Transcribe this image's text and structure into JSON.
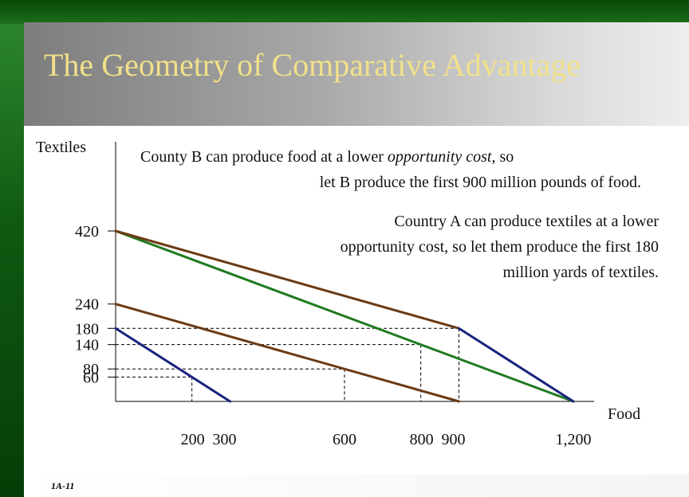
{
  "slide": {
    "title": "The Geometry of Comparative Advantage",
    "footnote": "1A-11",
    "annotation_b": {
      "line1_pre": "County B can produce food at a lower ",
      "line1_em": "opportunity cost",
      "line1_post": ", so",
      "line2": "let B produce the first  900 million pounds of food."
    },
    "annotation_a": {
      "line1": "Country A can produce textiles at a lower",
      "line2": "opportunity cost, so let them produce the first 180",
      "line3": "million yards of textiles."
    }
  },
  "colors": {
    "country_a": "#1a237e",
    "country_b": "#6b3a14",
    "combined": "#1e7a1e",
    "title": "#f1e18a"
  },
  "chart_data": {
    "type": "line",
    "ylabel": "Textiles",
    "xlabel": "Food",
    "xlim": [
      0,
      1200
    ],
    "ylim": [
      0,
      420
    ],
    "x_tick_labels": [
      {
        "x": 200,
        "label": "200"
      },
      {
        "x": 300,
        "label": "300"
      },
      {
        "x": 600,
        "label": "600"
      },
      {
        "x": 800,
        "label": "800"
      },
      {
        "x": 900,
        "label": "900"
      },
      {
        "x": 1200,
        "label": "1,200"
      }
    ],
    "y_tick_labels": [
      {
        "y": 420,
        "label": "420"
      },
      {
        "y": 240,
        "label": "240"
      },
      {
        "y": 180,
        "label": "180"
      },
      {
        "y": 140,
        "label": "140"
      },
      {
        "y": 80,
        "label": "80"
      },
      {
        "y": 60,
        "label": "60"
      }
    ],
    "series": [
      {
        "key": "country_a",
        "points": [
          [
            0,
            180
          ],
          [
            300,
            0
          ]
        ]
      },
      {
        "key": "country_b",
        "points": [
          [
            0,
            240
          ],
          [
            900,
            0
          ]
        ]
      },
      {
        "key": "combined",
        "points": [
          [
            0,
            420
          ],
          [
            1200,
            0
          ]
        ]
      },
      {
        "key": "frontier",
        "points": [
          [
            0,
            420
          ],
          [
            900,
            180
          ],
          [
            1200,
            0
          ]
        ]
      }
    ],
    "series_colors": [
      "#1a237e",
      "#6b3a14",
      "#1e7a1e",
      [
        "#6b3a14",
        "#1a237e"
      ]
    ],
    "guides": [
      {
        "x": 200,
        "y": 60
      },
      {
        "x": 600,
        "y": 80
      },
      {
        "x": 800,
        "y": 140
      },
      {
        "x": 900,
        "y": 180
      }
    ]
  }
}
